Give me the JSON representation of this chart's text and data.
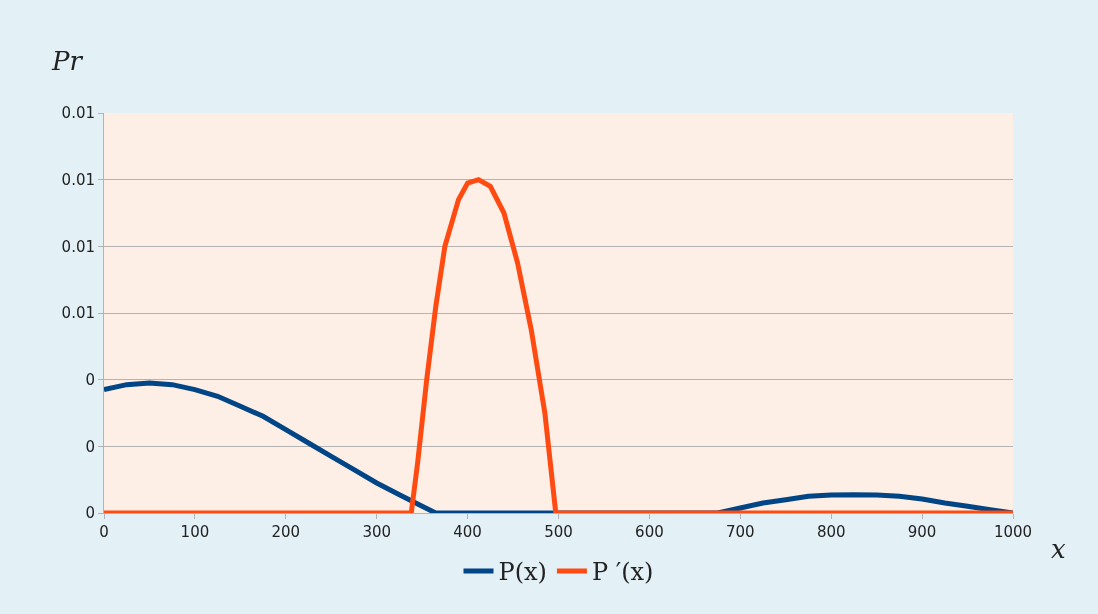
{
  "chart_data": {
    "type": "line",
    "xlabel": "x",
    "ylabel": "Pr",
    "xlim": [
      0,
      1000
    ],
    "xticks": [
      0,
      100,
      200,
      300,
      400,
      500,
      600,
      700,
      800,
      900,
      1000
    ],
    "ylim": [
      0,
      0.012
    ],
    "yticks": [
      {
        "value": 0,
        "label": "0"
      },
      {
        "value": 0.002,
        "label": "0"
      },
      {
        "value": 0.004,
        "label": "0"
      },
      {
        "value": 0.006,
        "label": "0.01"
      },
      {
        "value": 0.008,
        "label": "0.01"
      },
      {
        "value": 0.01,
        "label": "0.01"
      },
      {
        "value": 0.012,
        "label": "0.01"
      }
    ],
    "grid": "y",
    "legend": "bottom",
    "marker": "none",
    "line_style": "solid",
    "series": [
      {
        "name": "P(x)",
        "color": "#004586",
        "x": [
          0,
          25,
          50,
          75,
          100,
          125,
          150,
          175,
          200,
          225,
          250,
          275,
          300,
          325,
          350,
          365,
          675,
          700,
          725,
          750,
          775,
          800,
          825,
          850,
          875,
          900,
          925,
          950,
          975,
          1000
        ],
        "values": [
          0.0037,
          0.00385,
          0.0039,
          0.00385,
          0.0037,
          0.0035,
          0.0032,
          0.0029,
          0.0025,
          0.0021,
          0.0017,
          0.0013,
          0.0009,
          0.00055,
          0.0002,
          0,
          0,
          0.00015,
          0.0003,
          0.0004,
          0.0005,
          0.00054,
          0.00055,
          0.00054,
          0.0005,
          0.00042,
          0.0003,
          0.0002,
          0.0001,
          0
        ]
      },
      {
        "name": "P ′(x)",
        "color": "#ff4b12",
        "x": [
          0,
          338,
          345,
          355,
          365,
          375,
          390,
          400,
          412,
          425,
          440,
          455,
          470,
          485,
          497,
          1000
        ],
        "values": [
          0,
          0,
          0.0015,
          0.004,
          0.0062,
          0.008,
          0.0094,
          0.0099,
          0.01,
          0.0098,
          0.009,
          0.0075,
          0.0055,
          0.003,
          0,
          0
        ]
      }
    ]
  }
}
